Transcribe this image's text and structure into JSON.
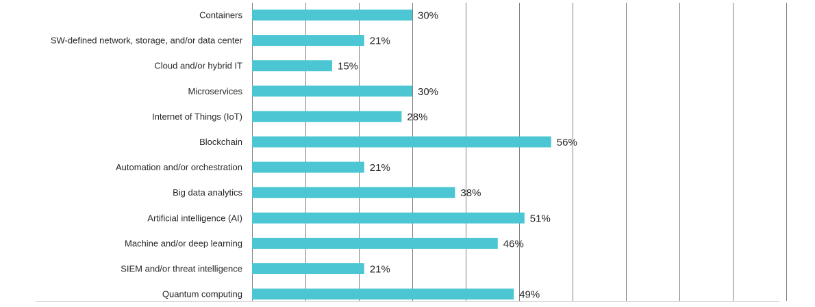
{
  "chart_data": {
    "type": "bar",
    "orientation": "horizontal",
    "categories": [
      "Containers",
      "SW-defined network, storage, and/or data center",
      "Cloud and/or hybrid IT",
      "Microservices",
      "Internet of Things (IoT)",
      "Blockchain",
      "Automation and/or orchestration",
      "Big data analytics",
      "Artificial intelligence (AI)",
      "Machine and/or deep learning",
      "SIEM and/or threat intelligence",
      "Quantum computing"
    ],
    "values": [
      30,
      21,
      15,
      30,
      28,
      56,
      21,
      38,
      51,
      46,
      21,
      49
    ],
    "value_labels": [
      "30%",
      "21%",
      "15%",
      "30%",
      "28%",
      "56%",
      "21%",
      "38%",
      "51%",
      "46%",
      "21%",
      "49%"
    ],
    "xlim": [
      0,
      100
    ],
    "x_gridlines": [
      0,
      10,
      20,
      30,
      40,
      50,
      60,
      70,
      80,
      90,
      100
    ],
    "grid": "vertical",
    "bar_color": "#4BC6D2",
    "grid_color": "#7F7F7F",
    "text_color": "#262626"
  }
}
